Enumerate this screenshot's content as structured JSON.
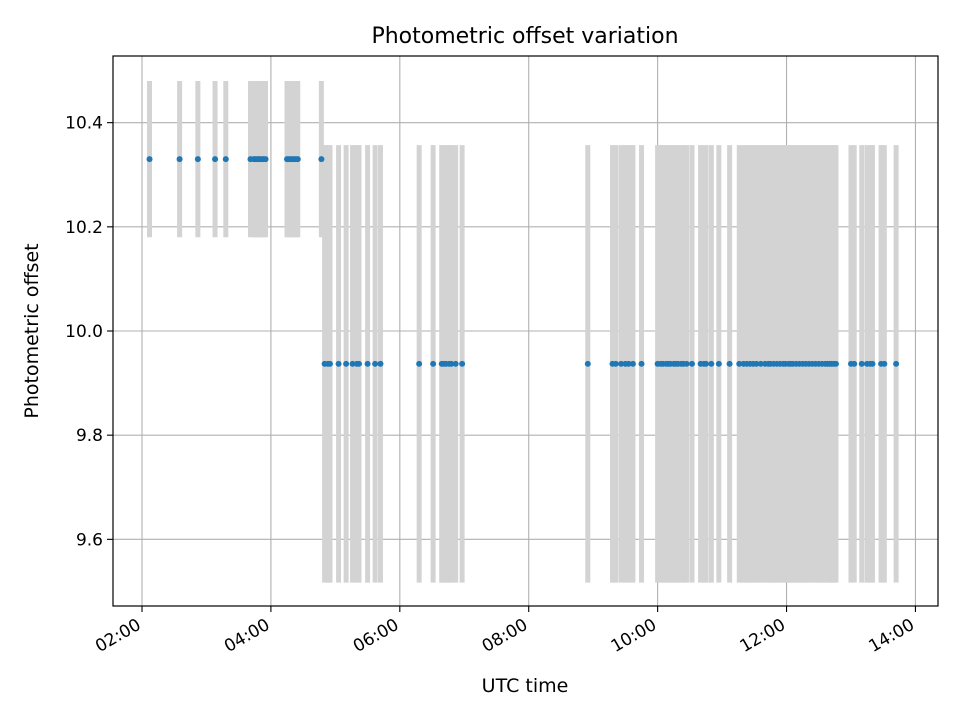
{
  "chart_data": {
    "type": "scatter",
    "title": "Photometric offset variation",
    "xlabel": "UTC time",
    "ylabel": "Photometric offset",
    "xlim": [
      "01:33",
      "14:21"
    ],
    "ylim": [
      9.472,
      10.528
    ],
    "x_ticks": [
      "02:00",
      "04:00",
      "06:00",
      "08:00",
      "10:00",
      "12:00",
      "14:00"
    ],
    "y_ticks": [
      "9.6",
      "9.8",
      "10.0",
      "10.2",
      "10.4"
    ],
    "grid": true,
    "legend": "none",
    "marker_color": "#1f77b4",
    "errorbar_color": "#d3d3d3",
    "series": [
      {
        "level": 10.33,
        "error": 0.15,
        "x": [
          "02:07",
          "02:35",
          "02:52",
          "03:08",
          "03:18",
          "03:41",
          "03:44",
          "03:46",
          "03:48",
          "03:49",
          "03:51",
          "03:53",
          "03:55",
          "04:15",
          "04:17",
          "04:19",
          "04:21",
          "04:23",
          "04:25",
          "04:47"
        ]
      },
      {
        "level": 9.937,
        "error": 0.42,
        "x": [
          "04:50",
          "04:53",
          "04:55",
          "05:03",
          "05:10",
          "05:16",
          "05:20",
          "05:22",
          "05:30",
          "05:37",
          "05:42",
          "06:18",
          "06:31",
          "06:39",
          "06:41",
          "06:43",
          "06:46",
          "06:48",
          "06:52",
          "06:58",
          "08:55",
          "09:18",
          "09:21",
          "09:26",
          "09:30",
          "09:33",
          "09:37",
          "09:45",
          "10:00",
          "10:03",
          "10:05",
          "10:08",
          "10:10",
          "10:12",
          "10:15",
          "10:17",
          "10:19",
          "10:22",
          "10:24",
          "10:27",
          "10:32",
          "10:40",
          "10:43",
          "10:45",
          "10:50",
          "10:57",
          "11:07",
          "11:16",
          "11:20",
          "11:23",
          "11:26",
          "11:29",
          "11:32",
          "11:36",
          "11:40",
          "11:43",
          "11:45",
          "11:48",
          "11:51",
          "11:54",
          "11:57",
          "11:59",
          "12:02",
          "12:04",
          "12:06",
          "12:09",
          "12:12",
          "12:15",
          "12:18",
          "12:21",
          "12:24",
          "12:27",
          "12:30",
          "12:33",
          "12:36",
          "12:38",
          "12:40",
          "12:42",
          "12:44",
          "12:46",
          "13:00",
          "13:03",
          "13:10",
          "13:15",
          "13:18",
          "13:20",
          "13:28",
          "13:31",
          "13:42"
        ]
      }
    ]
  }
}
